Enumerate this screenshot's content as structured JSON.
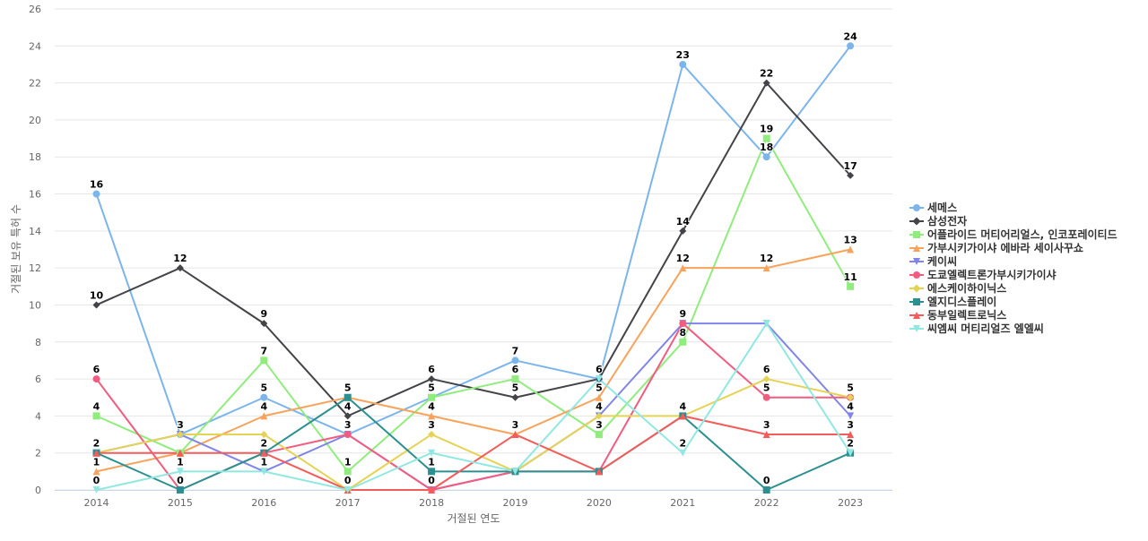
{
  "chart_data": {
    "type": "line",
    "title": "",
    "xlabel": "거절된 연도",
    "ylabel": "거절된 보유 특허 수",
    "ylim": [
      0,
      26
    ],
    "yticks": [
      "0",
      "2",
      "4",
      "6",
      "8",
      "10",
      "12",
      "14",
      "16",
      "18",
      "20",
      "22",
      "24",
      "26"
    ],
    "categories": [
      "2014",
      "2015",
      "2016",
      "2017",
      "2018",
      "2019",
      "2020",
      "2021",
      "2022",
      "2023"
    ],
    "grid": true,
    "legend_position": "right",
    "data_labels": true,
    "series": [
      {
        "name": "세메스",
        "color": "#7cb5ec",
        "marker": "circle",
        "values": [
          16,
          3,
          5,
          3,
          5,
          7,
          6,
          23,
          18,
          24
        ],
        "labels": [
          true,
          true,
          true,
          false,
          false,
          true,
          true,
          true,
          true,
          true
        ]
      },
      {
        "name": "삼성전자",
        "color": "#434348",
        "marker": "diamond",
        "values": [
          10,
          12,
          9,
          4,
          6,
          5,
          6,
          14,
          22,
          17
        ],
        "labels": [
          true,
          true,
          true,
          true,
          true,
          true,
          true,
          true,
          true,
          true
        ]
      },
      {
        "name": "어플라이드 머티어리얼스, 인코포레이티드",
        "color": "#90ed7d",
        "marker": "square",
        "values": [
          4,
          2,
          7,
          1,
          5,
          6,
          3,
          8,
          19,
          11
        ],
        "labels": [
          true,
          false,
          true,
          true,
          true,
          true,
          true,
          true,
          true,
          true
        ]
      },
      {
        "name": "가부시키가이샤 에바라 세이사꾸쇼",
        "color": "#f7a35c",
        "marker": "triangle",
        "values": [
          1,
          2,
          4,
          5,
          4,
          3,
          5,
          12,
          12,
          13
        ],
        "labels": [
          true,
          false,
          true,
          false,
          true,
          false,
          true,
          true,
          true,
          true
        ]
      },
      {
        "name": "케이씨",
        "color": "#8085e9",
        "marker": "triangle-down",
        "values": [
          2,
          3,
          1,
          3,
          0,
          1,
          4,
          9,
          9,
          4
        ],
        "labels": [
          true,
          false,
          true,
          true,
          true,
          false,
          true,
          false,
          false,
          true
        ]
      },
      {
        "name": "도쿄엘렉트론가부시키가이샤",
        "color": "#f15c80",
        "marker": "circle",
        "values": [
          6,
          0,
          2,
          3,
          0,
          1,
          1,
          9,
          5,
          5
        ],
        "labels": [
          true,
          false,
          true,
          false,
          false,
          false,
          false,
          true,
          true,
          false
        ]
      },
      {
        "name": "에스케이하이닉스",
        "color": "#e4d354",
        "marker": "diamond",
        "values": [
          2,
          3,
          3,
          0,
          3,
          1,
          4,
          4,
          6,
          5
        ],
        "labels": [
          false,
          true,
          false,
          true,
          true,
          false,
          false,
          true,
          true,
          true
        ]
      },
      {
        "name": "엘지디스플레이",
        "color": "#2b908f",
        "marker": "square",
        "values": [
          2,
          0,
          2,
          5,
          1,
          1,
          1,
          4,
          0,
          2
        ],
        "labels": [
          false,
          true,
          false,
          true,
          true,
          false,
          false,
          false,
          true,
          false
        ]
      },
      {
        "name": "동부일렉트로닉스",
        "color": "#f45b5b",
        "marker": "triangle",
        "values": [
          2,
          2,
          2,
          0,
          0,
          3,
          1,
          4,
          3,
          3
        ],
        "labels": [
          false,
          false,
          false,
          false,
          false,
          true,
          false,
          false,
          true,
          true
        ]
      },
      {
        "name": "씨엠씨 머티리얼즈 엘엘씨",
        "color": "#91e8e1",
        "marker": "triangle-down",
        "values": [
          0,
          1,
          1,
          0,
          2,
          1,
          6,
          2,
          9,
          2
        ],
        "labels": [
          true,
          true,
          false,
          false,
          false,
          false,
          false,
          true,
          false,
          true
        ]
      }
    ]
  }
}
